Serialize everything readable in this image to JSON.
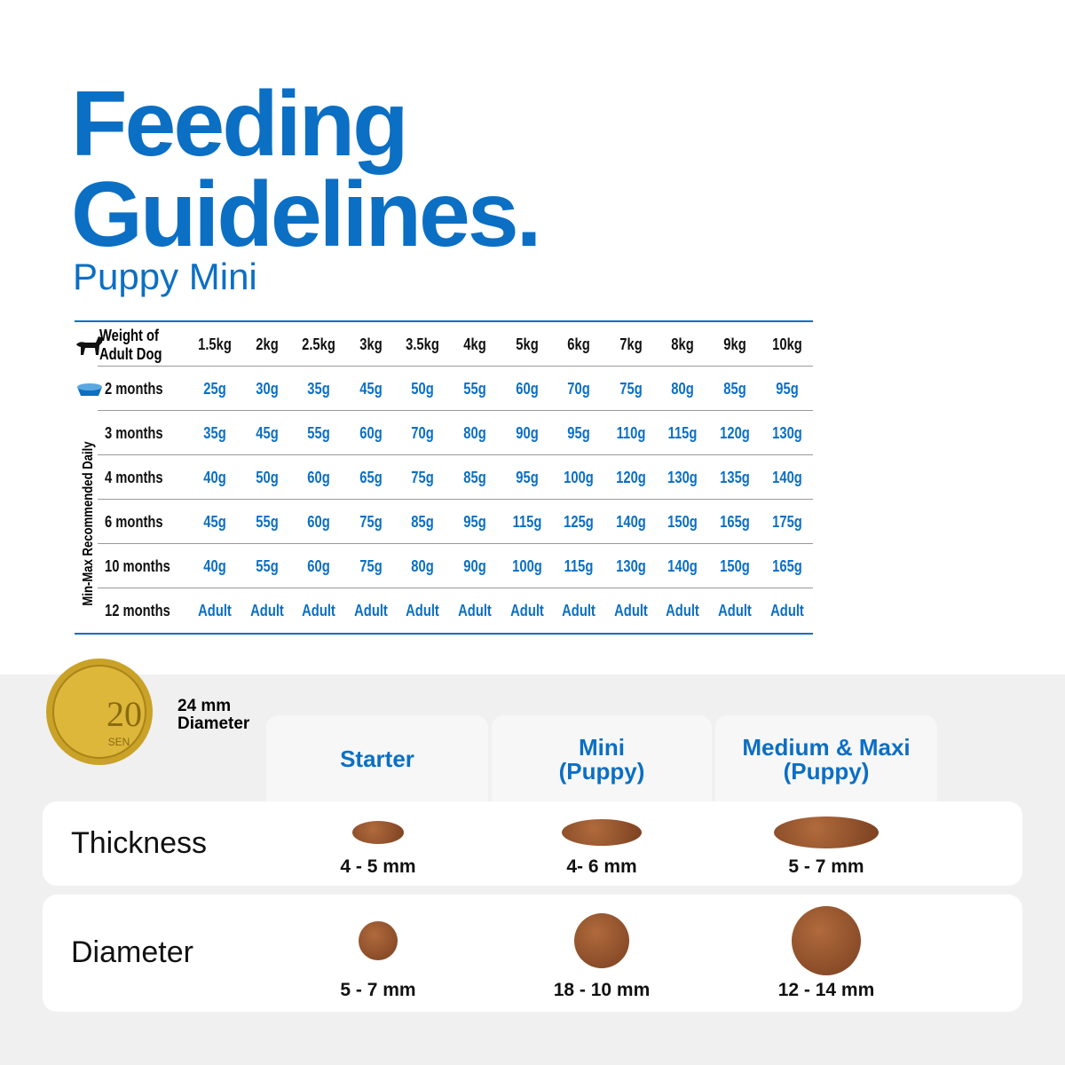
{
  "header": {
    "title_lines": [
      "Feeding",
      "Guidelines."
    ],
    "subtitle": "Puppy Mini"
  },
  "table": {
    "corner": "Weight of Adult Dog",
    "side_label": "Min-Max Recommended Daily",
    "columns": [
      "1.5kg",
      "2kg",
      "2.5kg",
      "3kg",
      "3.5kg",
      "4kg",
      "5kg",
      "6kg",
      "7kg",
      "8kg",
      "9kg",
      "10kg"
    ],
    "rows": [
      {
        "label": "2 months",
        "cells": [
          "25g",
          "30g",
          "35g",
          "45g",
          "50g",
          "55g",
          "60g",
          "70g",
          "75g",
          "80g",
          "85g",
          "95g"
        ]
      },
      {
        "label": "3 months",
        "cells": [
          "35g",
          "45g",
          "55g",
          "60g",
          "70g",
          "80g",
          "90g",
          "95g",
          "110g",
          "115g",
          "120g",
          "130g"
        ]
      },
      {
        "label": "4 months",
        "cells": [
          "40g",
          "50g",
          "60g",
          "65g",
          "75g",
          "85g",
          "95g",
          "100g",
          "120g",
          "130g",
          "135g",
          "140g"
        ]
      },
      {
        "label": "6 months",
        "cells": [
          "45g",
          "55g",
          "60g",
          "75g",
          "85g",
          "95g",
          "115g",
          "125g",
          "140g",
          "150g",
          "165g",
          "175g"
        ]
      },
      {
        "label": "10 months",
        "cells": [
          "40g",
          "55g",
          "60g",
          "75g",
          "80g",
          "90g",
          "100g",
          "115g",
          "130g",
          "140g",
          "150g",
          "165g"
        ]
      },
      {
        "label": "12 months",
        "cells": [
          "Adult",
          "Adult",
          "Adult",
          "Adult",
          "Adult",
          "Adult",
          "Adult",
          "Adult",
          "Adult",
          "Adult",
          "Adult",
          "Adult"
        ]
      }
    ]
  },
  "coin": {
    "value": "20",
    "unit": "SEN",
    "caption_lines": [
      "24 mm",
      "Diameter"
    ]
  },
  "comparison": {
    "columns": [
      [
        "Starter"
      ],
      [
        "Mini",
        "(Puppy)"
      ],
      [
        "Medium & Maxi",
        "(Puppy)"
      ]
    ],
    "rows": [
      {
        "label": "Thickness",
        "cells": [
          "4 - 5 mm",
          "4- 6 mm",
          "5 - 7 mm"
        ]
      },
      {
        "label": "Diameter",
        "cells": [
          "5 - 7 mm",
          "18 - 10 mm",
          "12  - 14 mm"
        ]
      }
    ]
  }
}
